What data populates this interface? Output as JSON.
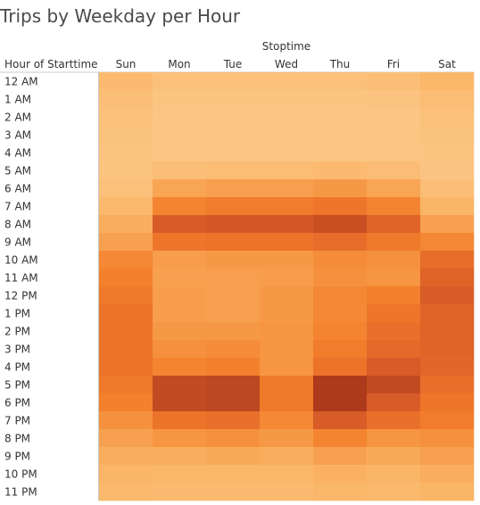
{
  "chart_data": {
    "type": "heatmap",
    "title": "Trips by Weekday per Hour",
    "column_group_label": "Stoptime",
    "row_header": "Hour of Starttime",
    "columns": [
      "Sun",
      "Mon",
      "Tue",
      "Wed",
      "Thu",
      "Fri",
      "Sat"
    ],
    "rows": [
      "12 AM",
      "1 AM",
      "2 AM",
      "3 AM",
      "4 AM",
      "5 AM",
      "6 AM",
      "7 AM",
      "8 AM",
      "9 AM",
      "10 AM",
      "11 AM",
      "12 PM",
      "1 PM",
      "2 PM",
      "3 PM",
      "4 PM",
      "5 PM",
      "6 PM",
      "7 PM",
      "8 PM",
      "9 PM",
      "10 PM",
      "11 PM"
    ],
    "values": [
      [
        0.28,
        0.22,
        0.22,
        0.22,
        0.22,
        0.24,
        0.32
      ],
      [
        0.24,
        0.18,
        0.18,
        0.18,
        0.18,
        0.19,
        0.26
      ],
      [
        0.22,
        0.16,
        0.16,
        0.16,
        0.16,
        0.16,
        0.22
      ],
      [
        0.2,
        0.16,
        0.16,
        0.16,
        0.16,
        0.16,
        0.2
      ],
      [
        0.19,
        0.16,
        0.16,
        0.16,
        0.16,
        0.16,
        0.18
      ],
      [
        0.18,
        0.24,
        0.26,
        0.26,
        0.28,
        0.25,
        0.17
      ],
      [
        0.22,
        0.42,
        0.45,
        0.45,
        0.48,
        0.42,
        0.24
      ],
      [
        0.3,
        0.58,
        0.62,
        0.62,
        0.66,
        0.58,
        0.34
      ],
      [
        0.38,
        0.82,
        0.84,
        0.84,
        0.88,
        0.78,
        0.44
      ],
      [
        0.44,
        0.66,
        0.68,
        0.68,
        0.72,
        0.64,
        0.56
      ],
      [
        0.56,
        0.46,
        0.48,
        0.48,
        0.54,
        0.52,
        0.72
      ],
      [
        0.6,
        0.44,
        0.45,
        0.46,
        0.52,
        0.5,
        0.78
      ],
      [
        0.64,
        0.46,
        0.44,
        0.48,
        0.56,
        0.6,
        0.82
      ],
      [
        0.68,
        0.46,
        0.44,
        0.48,
        0.56,
        0.66,
        0.78
      ],
      [
        0.68,
        0.48,
        0.48,
        0.5,
        0.58,
        0.7,
        0.78
      ],
      [
        0.68,
        0.52,
        0.54,
        0.5,
        0.62,
        0.74,
        0.78
      ],
      [
        0.68,
        0.58,
        0.6,
        0.5,
        0.68,
        0.82,
        0.76
      ],
      [
        0.64,
        0.9,
        0.92,
        0.64,
        0.98,
        0.9,
        0.7
      ],
      [
        0.6,
        0.9,
        0.92,
        0.64,
        0.98,
        0.82,
        0.66
      ],
      [
        0.52,
        0.68,
        0.7,
        0.56,
        0.82,
        0.7,
        0.62
      ],
      [
        0.44,
        0.5,
        0.52,
        0.48,
        0.58,
        0.5,
        0.52
      ],
      [
        0.38,
        0.38,
        0.4,
        0.38,
        0.44,
        0.4,
        0.44
      ],
      [
        0.34,
        0.32,
        0.32,
        0.32,
        0.36,
        0.34,
        0.38
      ],
      [
        0.3,
        0.28,
        0.28,
        0.28,
        0.32,
        0.3,
        0.34
      ]
    ],
    "value_scale": "relative trip count (0 = fewest, 1 = most), estimated from color intensity",
    "color_low": "#fdd49e",
    "color_high": "#a6361a"
  }
}
